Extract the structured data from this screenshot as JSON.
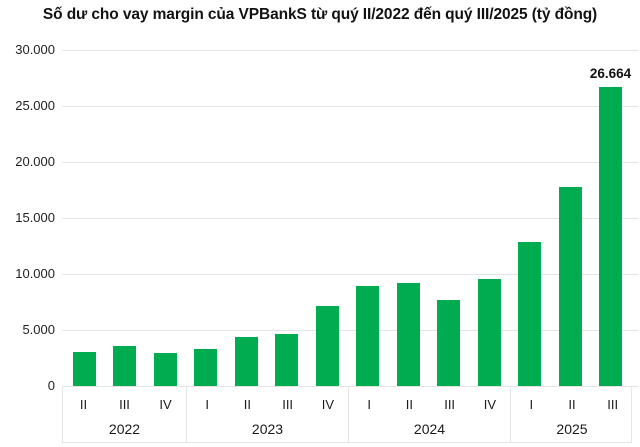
{
  "chart_data": {
    "type": "bar",
    "title": "Số dư cho vay margin của VPBankS từ quý II/2022 đến quý III/2025 (tỷ đồng)",
    "unit_note": "tỷ đồng",
    "bar_color": "#00AC4F",
    "grid_color": "#e4e4e4",
    "legend": "none",
    "grid": "horizontal",
    "ylim": [
      0,
      30000
    ],
    "y_ticks": [
      {
        "label": "30.000",
        "value": 30000
      },
      {
        "label": "25.000",
        "value": 25000
      },
      {
        "label": "20.000",
        "value": 20000
      },
      {
        "label": "15.000",
        "value": 15000
      },
      {
        "label": "10.000",
        "value": 10000
      },
      {
        "label": "5.000",
        "value": 5000
      },
      {
        "label": "0",
        "value": 0
      }
    ],
    "groups": [
      {
        "year": "2022",
        "quarters": [
          "II",
          "III",
          "IV"
        ],
        "values": [
          3000,
          3550,
          2950
        ]
      },
      {
        "year": "2023",
        "quarters": [
          "I",
          "II",
          "III",
          "IV"
        ],
        "values": [
          3300,
          4350,
          4650,
          7150
        ]
      },
      {
        "year": "2024",
        "quarters": [
          "I",
          "II",
          "III",
          "IV"
        ],
        "values": [
          8900,
          9200,
          7650,
          9550
        ]
      },
      {
        "year": "2025",
        "quarters": [
          "I",
          "II",
          "III"
        ],
        "values": [
          12850,
          17750,
          26664
        ]
      }
    ],
    "categories": [
      "II/2022",
      "III/2022",
      "IV/2022",
      "I/2023",
      "II/2023",
      "III/2023",
      "IV/2023",
      "I/2024",
      "II/2024",
      "III/2024",
      "IV/2024",
      "I/2025",
      "II/2025",
      "III/2025"
    ],
    "annotation": {
      "label": "26.664",
      "bar_index": 13
    }
  }
}
